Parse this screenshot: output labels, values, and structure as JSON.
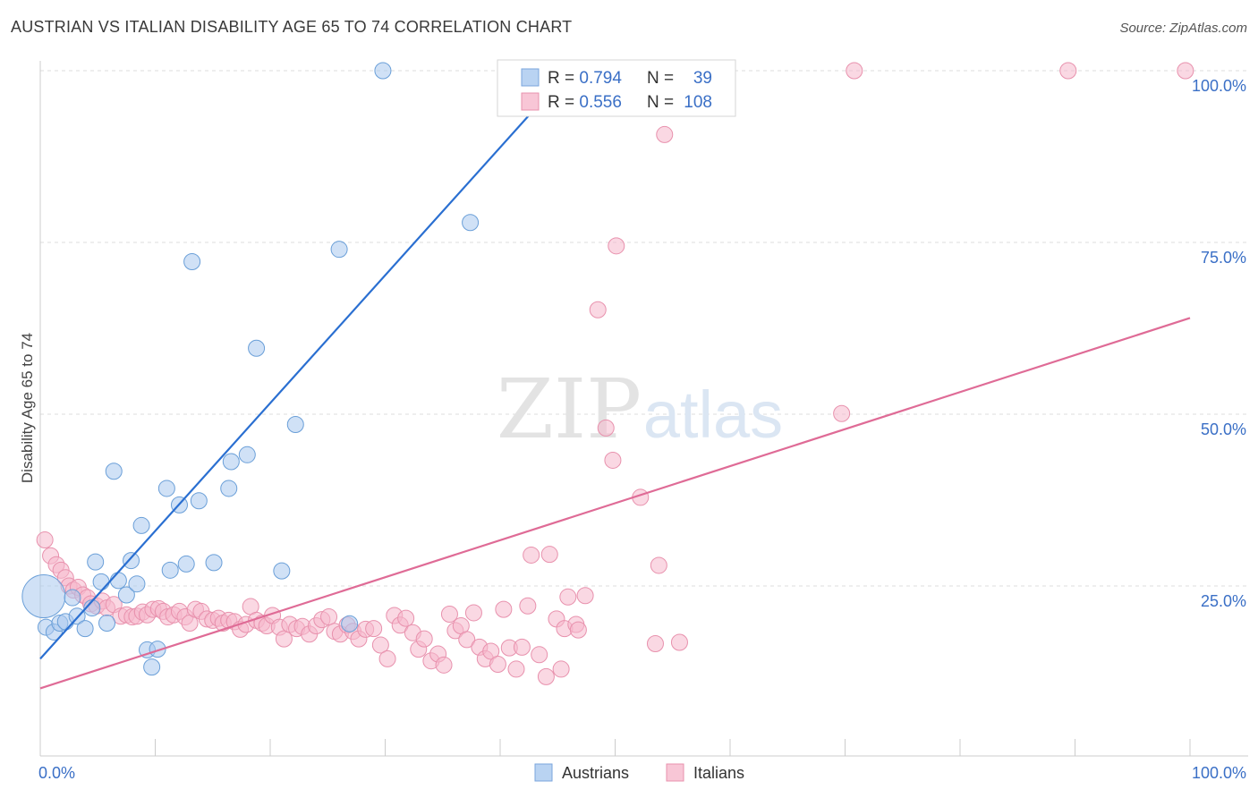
{
  "title": "AUSTRIAN VS ITALIAN DISABILITY AGE 65 TO 74 CORRELATION CHART",
  "source": "Source: ZipAtlas.com",
  "watermark": {
    "zip": "ZIP",
    "atlas": "atlas"
  },
  "colors": {
    "austrians_fill": "#a9c8ef",
    "austrians_stroke": "#6a9fd8",
    "austrians_line": "#2a6fd1",
    "italians_fill": "#f6b8cc",
    "italians_stroke": "#e891ad",
    "italians_line": "#df6b96",
    "value_text": "#3a6fc6",
    "grid": "#dddddd"
  },
  "stats_legend": [
    {
      "r_label": "R = ",
      "r_value": "0.794",
      "n_label": "N = ",
      "n_value": "39"
    },
    {
      "r_label": "R = ",
      "r_value": "0.556",
      "n_label": "N = ",
      "n_value": "108"
    }
  ],
  "chart_data": {
    "type": "scatter",
    "title": "AUSTRIAN VS ITALIAN DISABILITY AGE 65 TO 74 CORRELATION CHART",
    "xlabel": "",
    "ylabel": "Disability Age 65 to 74",
    "xlim": [
      0,
      100
    ],
    "ylim": [
      3,
      105
    ],
    "x_tick_labels": [
      "0.0%",
      "100.0%"
    ],
    "y_ticks": [
      25,
      50,
      75,
      100
    ],
    "y_tick_labels": [
      "25.0%",
      "50.0%",
      "75.0%",
      "100.0%"
    ],
    "grid": "horizontal dashed",
    "legend_position": "bottom-center",
    "series": [
      {
        "name": "Austrians",
        "r": 0.794,
        "n": 39,
        "trend": [
          [
            0,
            14.4
          ],
          [
            46,
            100
          ]
        ],
        "points": [
          [
            0.3,
            23.5,
            3
          ],
          [
            0.5,
            19,
            1
          ],
          [
            1.2,
            18.3,
            1
          ],
          [
            1.7,
            19.6,
            1
          ],
          [
            2.2,
            19.8,
            1
          ],
          [
            2.8,
            23.3,
            1
          ],
          [
            3.2,
            20.6,
            1
          ],
          [
            3.9,
            18.8,
            1
          ],
          [
            4.5,
            21.8,
            1
          ],
          [
            4.8,
            28.5,
            1
          ],
          [
            5.3,
            25.6,
            1
          ],
          [
            5.8,
            19.6,
            1
          ],
          [
            6.4,
            41.7,
            1
          ],
          [
            6.8,
            25.8,
            1
          ],
          [
            7.5,
            23.7,
            1
          ],
          [
            7.9,
            28.7,
            1
          ],
          [
            8.4,
            25.3,
            1
          ],
          [
            8.8,
            33.8,
            1
          ],
          [
            9.3,
            15.7,
            1
          ],
          [
            9.7,
            13.2,
            1
          ],
          [
            10.2,
            15.8,
            1
          ],
          [
            11,
            39.2,
            1
          ],
          [
            11.3,
            27.3,
            1
          ],
          [
            12.1,
            36.8,
            1
          ],
          [
            12.7,
            28.2,
            1
          ],
          [
            13.2,
            72.2,
            1
          ],
          [
            13.8,
            37.4,
            1
          ],
          [
            15.1,
            28.4,
            1
          ],
          [
            16.4,
            39.2,
            1
          ],
          [
            16.6,
            43.1,
            1
          ],
          [
            18,
            44.1,
            1
          ],
          [
            18.8,
            59.6,
            1
          ],
          [
            21,
            27.2,
            1
          ],
          [
            22.2,
            48.5,
            1
          ],
          [
            26,
            74,
            1
          ],
          [
            26.9,
            19.5,
            1
          ],
          [
            29.8,
            100,
            1
          ],
          [
            37.4,
            77.9,
            1
          ],
          [
            41,
            100,
            1
          ]
        ]
      },
      {
        "name": "Italians",
        "r": 0.556,
        "n": 108,
        "trend": [
          [
            0,
            10.1
          ],
          [
            100,
            64
          ]
        ],
        "points": [
          [
            0.4,
            31.7
          ],
          [
            0.9,
            29.4
          ],
          [
            1.4,
            28.1
          ],
          [
            1.8,
            27.3
          ],
          [
            2.2,
            26.2
          ],
          [
            2.5,
            25
          ],
          [
            2.9,
            24.4
          ],
          [
            3.3,
            24.8
          ],
          [
            3.7,
            23.7
          ],
          [
            4.1,
            23.3
          ],
          [
            4.4,
            22.4
          ],
          [
            4.9,
            22.1
          ],
          [
            5.4,
            22.8
          ],
          [
            5.8,
            21.8
          ],
          [
            6.4,
            22.3
          ],
          [
            7,
            20.6
          ],
          [
            7.5,
            20.8
          ],
          [
            8,
            20.5
          ],
          [
            8.4,
            20.6
          ],
          [
            8.9,
            21.2
          ],
          [
            9.3,
            20.8
          ],
          [
            9.8,
            21.6
          ],
          [
            10.3,
            21.7
          ],
          [
            10.7,
            21.3
          ],
          [
            11.1,
            20.5
          ],
          [
            11.6,
            20.8
          ],
          [
            12.1,
            21.3
          ],
          [
            12.6,
            20.5
          ],
          [
            13,
            19.6
          ],
          [
            13.5,
            21.6
          ],
          [
            14,
            21.3
          ],
          [
            14.5,
            20.2
          ],
          [
            15,
            20
          ],
          [
            15.5,
            20.3
          ],
          [
            15.9,
            19.6
          ],
          [
            16.4,
            20
          ],
          [
            16.9,
            19.8
          ],
          [
            17.4,
            18.7
          ],
          [
            17.9,
            19.4
          ],
          [
            18.3,
            22
          ],
          [
            18.8,
            20
          ],
          [
            19.3,
            19.6
          ],
          [
            19.7,
            19.2
          ],
          [
            20.2,
            20.7
          ],
          [
            20.8,
            19
          ],
          [
            21.2,
            17.3
          ],
          [
            21.7,
            19.4
          ],
          [
            22.3,
            18.8
          ],
          [
            22.8,
            19.1
          ],
          [
            23.4,
            18
          ],
          [
            24,
            19.2
          ],
          [
            24.5,
            20.1
          ],
          [
            25.1,
            20.5
          ],
          [
            25.6,
            18.4
          ],
          [
            26.1,
            18
          ],
          [
            26.7,
            19.3
          ],
          [
            27.2,
            18.4
          ],
          [
            27.7,
            17.3
          ],
          [
            28.3,
            18.7
          ],
          [
            29,
            18.8
          ],
          [
            29.6,
            16.4
          ],
          [
            30.2,
            14.4
          ],
          [
            30.8,
            20.7
          ],
          [
            31.3,
            19.3
          ],
          [
            31.8,
            20.3
          ],
          [
            32.4,
            18.2
          ],
          [
            32.9,
            15.8
          ],
          [
            33.4,
            17.3
          ],
          [
            34,
            14.1
          ],
          [
            34.6,
            15.1
          ],
          [
            35.1,
            13.5
          ],
          [
            35.6,
            20.9
          ],
          [
            36.1,
            18.5
          ],
          [
            36.6,
            19.2
          ],
          [
            37.1,
            17.2
          ],
          [
            37.7,
            21.1
          ],
          [
            38.2,
            16.1
          ],
          [
            38.7,
            14.4
          ],
          [
            39.2,
            15.5
          ],
          [
            39.8,
            13.6
          ],
          [
            40.3,
            21.6
          ],
          [
            40.8,
            16
          ],
          [
            41.4,
            12.9
          ],
          [
            41.9,
            16.1
          ],
          [
            42.4,
            22.1
          ],
          [
            42.7,
            29.5
          ],
          [
            43.4,
            15
          ],
          [
            44,
            11.8
          ],
          [
            44.3,
            29.6
          ],
          [
            44.9,
            20.2
          ],
          [
            45.3,
            12.9
          ],
          [
            45.6,
            18.8
          ],
          [
            45.9,
            23.4
          ],
          [
            46.6,
            19.4
          ],
          [
            46.8,
            18.6
          ],
          [
            47.4,
            23.6
          ],
          [
            48.5,
            65.2
          ],
          [
            49.2,
            48
          ],
          [
            49.8,
            43.3
          ],
          [
            50.1,
            74.5
          ],
          [
            52.2,
            37.9
          ],
          [
            53.5,
            16.6
          ],
          [
            53.8,
            28
          ],
          [
            54.3,
            90.7
          ],
          [
            55.6,
            16.8
          ],
          [
            69.7,
            50.1
          ],
          [
            70.8,
            100
          ],
          [
            89.4,
            100
          ],
          [
            99.6,
            100
          ]
        ]
      }
    ]
  },
  "bottom_legend": {
    "austrians": "Austrians",
    "italians": "Italians"
  }
}
